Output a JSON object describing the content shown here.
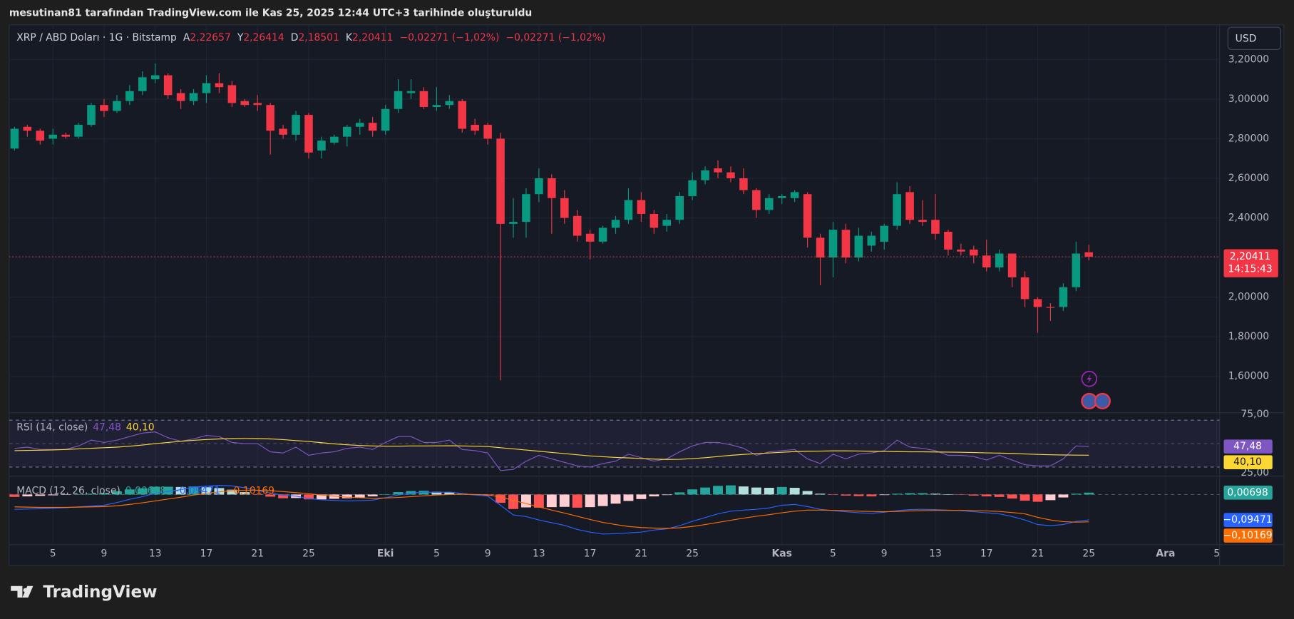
{
  "header": {
    "attribution": "mesutinan81 tarafından TradingView.com ile Kas 25, 2025 12:44 UTC+3 tarihinde oluşturuldu"
  },
  "chart_data": {
    "type": "candlestick",
    "symbol": "XRP / ABD Doları · 1G · Bitstamp",
    "ohlc_labels": [
      "A",
      "Y",
      "D",
      "K"
    ],
    "last_ohlc_labels": [
      "2,22657",
      "2,26414",
      "2,18501",
      "2,20411"
    ],
    "change_labels": [
      "−0,02271 (−1,02%)",
      "−0,02271 (−1,02%)"
    ],
    "currency": "USD",
    "last_label": "2,20411",
    "countdown": "14:15:43",
    "grid": true,
    "up_color": "#089981",
    "down_color": "#f23645",
    "categories": [
      null,
      null,
      null,
      "5",
      null,
      null,
      null,
      "9",
      null,
      null,
      null,
      "13",
      null,
      null,
      null,
      "17",
      null,
      null,
      null,
      "21",
      null,
      null,
      null,
      "25",
      null,
      null,
      null,
      null,
      null,
      "Eki",
      null,
      null,
      null,
      "5",
      null,
      null,
      null,
      "9",
      null,
      null,
      null,
      "13",
      null,
      null,
      null,
      "17",
      null,
      null,
      null,
      "21",
      null,
      null,
      null,
      "25",
      null,
      null,
      null,
      null,
      null,
      null,
      "Kas",
      null,
      null,
      null,
      "5",
      null,
      null,
      null,
      "9",
      null,
      null,
      null,
      "13",
      null,
      null,
      null,
      "17",
      null,
      null,
      null,
      "21",
      null,
      null,
      null,
      "25",
      null,
      null,
      null,
      null,
      null,
      "Ara",
      null,
      null,
      null,
      "5"
    ],
    "open": [
      2.75,
      2.86,
      2.84,
      2.8,
      2.82,
      2.81,
      2.87,
      2.97,
      2.94,
      2.99,
      3.04,
      3.1,
      3.12,
      3.03,
      2.99,
      3.03,
      3.08,
      3.07,
      2.99,
      2.98,
      2.97,
      2.85,
      2.82,
      2.92,
      2.74,
      2.78,
      2.81,
      2.86,
      2.88,
      2.84,
      2.95,
      3.03,
      3.04,
      2.96,
      2.97,
      2.99,
      2.87,
      2.87,
      2.8,
      2.37,
      2.38,
      2.52,
      2.6,
      2.5,
      2.41,
      2.32,
      2.28,
      2.35,
      2.39,
      2.49,
      2.42,
      2.36,
      2.39,
      2.51,
      2.59,
      2.65,
      2.63,
      2.6,
      2.54,
      2.44,
      2.5,
      2.5,
      2.52,
      2.3,
      2.2,
      2.34,
      2.2,
      2.26,
      2.28,
      2.36,
      2.53,
      2.39,
      2.39,
      2.33,
      2.24,
      2.24,
      2.21,
      2.15,
      2.22,
      2.1,
      1.99,
      1.95,
      1.95,
      2.05,
      2.22657,
      null,
      null,
      null,
      null,
      null,
      null,
      null,
      null,
      null,
      null
    ],
    "high": [
      2.86,
      2.87,
      2.85,
      2.85,
      2.83,
      2.88,
      2.98,
      3.0,
      3.02,
      3.07,
      3.14,
      3.18,
      3.13,
      3.05,
      3.05,
      3.12,
      3.13,
      3.09,
      3.0,
      3.02,
      2.98,
      2.87,
      2.94,
      2.93,
      2.81,
      2.82,
      2.87,
      2.9,
      2.91,
      2.97,
      3.1,
      3.1,
      3.06,
      3.06,
      3.02,
      3.0,
      2.9,
      2.88,
      2.83,
      2.5,
      2.55,
      2.65,
      2.62,
      2.54,
      2.44,
      2.34,
      2.36,
      2.41,
      2.55,
      2.53,
      2.44,
      2.42,
      2.53,
      2.63,
      2.66,
      2.69,
      2.66,
      2.65,
      2.55,
      2.52,
      2.52,
      2.54,
      2.53,
      2.32,
      2.38,
      2.37,
      2.35,
      2.33,
      2.37,
      2.58,
      2.56,
      2.49,
      2.52,
      2.34,
      2.27,
      2.26,
      2.29,
      2.24,
      2.22,
      2.13,
      2.0,
      1.97,
      2.07,
      2.28,
      2.26414,
      null,
      null,
      null,
      null,
      null,
      null,
      null,
      null,
      null,
      null
    ],
    "low": [
      2.74,
      2.81,
      2.77,
      2.77,
      2.8,
      2.8,
      2.86,
      2.91,
      2.93,
      2.97,
      3.02,
      3.08,
      3.0,
      2.95,
      2.97,
      2.98,
      3.03,
      2.96,
      2.96,
      2.94,
      2.72,
      2.8,
      2.79,
      2.7,
      2.7,
      2.77,
      2.76,
      2.82,
      2.81,
      2.82,
      2.93,
      3.0,
      2.95,
      2.94,
      2.95,
      2.83,
      2.82,
      2.77,
      1.58,
      2.3,
      2.3,
      2.48,
      2.32,
      2.37,
      2.28,
      2.19,
      2.27,
      2.32,
      2.37,
      2.38,
      2.32,
      2.33,
      2.37,
      2.49,
      2.57,
      2.6,
      2.58,
      2.52,
      2.4,
      2.42,
      2.47,
      2.48,
      2.25,
      2.06,
      2.1,
      2.17,
      2.18,
      2.23,
      2.24,
      2.34,
      2.37,
      2.36,
      2.29,
      2.21,
      2.21,
      2.17,
      2.13,
      2.13,
      2.05,
      1.95,
      1.82,
      1.88,
      1.93,
      2.03,
      2.18501,
      null,
      null,
      null,
      null,
      null,
      null,
      null,
      null,
      null,
      null
    ],
    "close": [
      2.85,
      2.84,
      2.79,
      2.82,
      2.81,
      2.87,
      2.97,
      2.94,
      2.99,
      3.04,
      3.11,
      3.12,
      3.02,
      2.99,
      3.03,
      3.08,
      3.06,
      2.98,
      2.97,
      2.97,
      2.84,
      2.82,
      2.92,
      2.73,
      2.79,
      2.81,
      2.86,
      2.88,
      2.84,
      2.95,
      3.04,
      3.04,
      2.96,
      2.97,
      2.99,
      2.85,
      2.84,
      2.8,
      2.37,
      2.38,
      2.52,
      2.6,
      2.5,
      2.4,
      2.31,
      2.28,
      2.35,
      2.39,
      2.49,
      2.42,
      2.35,
      2.39,
      2.51,
      2.59,
      2.64,
      2.63,
      2.6,
      2.54,
      2.44,
      2.5,
      2.51,
      2.53,
      2.3,
      2.2,
      2.34,
      2.2,
      2.31,
      2.31,
      2.36,
      2.52,
      2.39,
      2.38,
      2.32,
      2.24,
      2.23,
      2.21,
      2.15,
      2.22,
      2.1,
      1.99,
      1.95,
      1.949,
      2.05,
      2.22,
      2.20411,
      null,
      null,
      null,
      null,
      null,
      null,
      null,
      null,
      null,
      null
    ],
    "ylim": [
      1.4,
      3.4
    ],
    "yticks": [
      {
        "value": 1.6,
        "label": "1,60000"
      },
      {
        "value": 1.8,
        "label": "1,80000"
      },
      {
        "value": 2.0,
        "label": "2,00000"
      },
      {
        "value": 2.2,
        "label": "2,20000"
      },
      {
        "value": 2.4,
        "label": "2,40000"
      },
      {
        "value": 2.6,
        "label": "2,60000"
      },
      {
        "value": 2.8,
        "label": "2,80000"
      },
      {
        "value": 3.0,
        "label": "3,00000"
      },
      {
        "value": 3.2,
        "label": "3,20000"
      }
    ],
    "indicators": [
      {
        "type": "line",
        "title": "RSI (14, close)",
        "ylim": [
          25,
          75
        ],
        "yticks": [
          {
            "value": 75,
            "label": "75,00"
          },
          {
            "value": 25,
            "label": "25,00"
          }
        ],
        "levels": [
          70,
          50,
          30
        ],
        "band_color": "#7e57c2",
        "series": [
          {
            "color": "#7e57c2",
            "last_label": "47,48",
            "values": [
              46,
              47,
              45,
              45,
              45,
              48,
              53,
              51,
              53,
              56,
              59,
              60,
              55,
              52,
              54,
              57,
              56,
              51,
              50,
              50,
              43,
              42,
              47,
              40,
              42,
              43,
              46,
              47,
              45,
              51,
              56,
              56,
              51,
              51,
              53,
              45,
              44,
              42,
              27,
              28,
              35,
              40,
              37,
              34,
              31,
              30,
              33,
              35,
              41,
              38,
              35,
              37,
              43,
              48,
              51,
              51,
              49,
              46,
              40,
              43,
              44,
              45,
              37,
              33,
              41,
              37,
              41,
              42,
              44,
              53,
              47,
              46,
              44,
              40,
              40,
              39,
              36,
              40,
              36,
              32,
              31,
              31,
              37,
              48,
              47.48,
              null,
              null,
              null,
              null,
              null,
              null,
              null,
              null,
              null,
              null
            ]
          },
          {
            "color": "#fdd835",
            "last_label": "40,10",
            "values": [
              44,
              44.2,
              44.4,
              44.6,
              45,
              45.5,
              46,
              46.5,
              47,
              47.8,
              48.8,
              50,
              51,
              52,
              52.8,
              53.5,
              54,
              54.3,
              54.4,
              54.3,
              54,
              53.4,
              52.6,
              51.8,
              50.8,
              49.8,
              49,
              48.4,
              48,
              47.8,
              47.8,
              48,
              48,
              48.1,
              48.2,
              48,
              47.8,
              47.5,
              46.5,
              45.5,
              44.5,
              43.5,
              42.5,
              41.5,
              40.5,
              39.5,
              38.8,
              38.2,
              37.8,
              37.3,
              36.8,
              36.5,
              36.6,
              37.2,
              38,
              39,
              40,
              40.8,
              41.4,
              42,
              42.6,
              43.2,
              43.5,
              43.6,
              43.8,
              43.8,
              43.7,
              43.5,
              43.3,
              43.2,
              43,
              43,
              42.9,
              42.8,
              42.6,
              42.4,
              42.1,
              41.9,
              41.6,
              41.2,
              40.8,
              40.5,
              40.3,
              40.2,
              40.1,
              null,
              null,
              null,
              null,
              null,
              null,
              null,
              null,
              null,
              null
            ]
          }
        ]
      },
      {
        "type": "macd",
        "title": "MACD (12, 26, close)",
        "ylim": [
          -0.19,
          0.065
        ],
        "levels": [
          0
        ],
        "histogram": {
          "last_label": "0,00698",
          "colors": [
            "#26a69a",
            "#b2dfdb",
            "#ff5252",
            "#ffcdd2"
          ],
          "values": [
            -0.009,
            -0.007,
            -0.005,
            -0.003,
            -0.001,
            0.001,
            0.003,
            0.005,
            0.012,
            0.019,
            0.023,
            0.029,
            0.029,
            0.028,
            0.03,
            0.027,
            0.024,
            0.018,
            0.009,
            -0.001,
            -0.008,
            -0.014,
            -0.013,
            -0.018,
            -0.018,
            -0.016,
            -0.014,
            -0.011,
            -0.007,
            0.001,
            0.009,
            0.013,
            0.014,
            0.01,
            0.009,
            0.003,
            -0.002,
            -0.005,
            -0.031,
            -0.054,
            -0.048,
            -0.049,
            -0.047,
            -0.046,
            -0.049,
            -0.047,
            -0.043,
            -0.034,
            -0.024,
            -0.017,
            -0.007,
            -0.002,
            0.008,
            0.019,
            0.026,
            0.032,
            0.034,
            0.03,
            0.026,
            0.025,
            0.028,
            0.025,
            0.013,
            0.003,
            -0.001,
            -0.004,
            -0.006,
            -0.007,
            -0.002,
            0.003,
            0.005,
            0.005,
            0.003,
            0.001,
            -0.001,
            -0.004,
            -0.007,
            -0.009,
            -0.015,
            -0.023,
            -0.027,
            -0.021,
            -0.011,
            0.003,
            0.00698,
            null,
            null,
            null,
            null,
            null,
            null,
            null,
            null,
            null,
            null
          ]
        },
        "series": [
          {
            "color": "#2962ff",
            "last_label": "−0,09471",
            "values": [
              -0.055,
              -0.054,
              -0.053,
              -0.051,
              -0.049,
              -0.046,
              -0.043,
              -0.04,
              -0.03,
              -0.018,
              -0.008,
              0.005,
              0.012,
              0.018,
              0.028,
              0.031,
              0.034,
              0.032,
              0.025,
              0.015,
              0.006,
              -0.003,
              -0.006,
              -0.015,
              -0.02,
              -0.022,
              -0.024,
              -0.023,
              -0.021,
              -0.012,
              -0.002,
              0.005,
              0.009,
              0.008,
              0.009,
              0.004,
              -0.002,
              -0.006,
              -0.04,
              -0.076,
              -0.082,
              -0.095,
              -0.105,
              -0.115,
              -0.13,
              -0.14,
              -0.147,
              -0.146,
              -0.143,
              -0.14,
              -0.132,
              -0.128,
              -0.116,
              -0.1,
              -0.086,
              -0.072,
              -0.062,
              -0.058,
              -0.055,
              -0.05,
              -0.04,
              -0.037,
              -0.045,
              -0.055,
              -0.06,
              -0.064,
              -0.068,
              -0.07,
              -0.066,
              -0.06,
              -0.056,
              -0.055,
              -0.056,
              -0.058,
              -0.06,
              -0.064,
              -0.068,
              -0.072,
              -0.082,
              -0.095,
              -0.112,
              -0.116,
              -0.112,
              -0.1,
              -0.09471,
              null,
              null,
              null,
              null,
              null,
              null,
              null,
              null,
              null,
              null
            ]
          },
          {
            "color": "#ff6d00",
            "last_label": "−0,10169",
            "values": [
              -0.046,
              -0.047,
              -0.048,
              -0.048,
              -0.048,
              -0.047,
              -0.046,
              -0.045,
              -0.042,
              -0.037,
              -0.031,
              -0.024,
              -0.017,
              -0.01,
              -0.002,
              0.004,
              0.01,
              0.014,
              0.016,
              0.016,
              0.014,
              0.011,
              0.007,
              0.003,
              -0.002,
              -0.006,
              -0.01,
              -0.012,
              -0.014,
              -0.013,
              -0.011,
              -0.008,
              -0.005,
              -0.002,
              0.0,
              0.001,
              0.0,
              -0.001,
              -0.009,
              -0.022,
              -0.034,
              -0.046,
              -0.058,
              -0.069,
              -0.081,
              -0.093,
              -0.104,
              -0.112,
              -0.119,
              -0.123,
              -0.125,
              -0.126,
              -0.124,
              -0.119,
              -0.112,
              -0.104,
              -0.096,
              -0.088,
              -0.081,
              -0.075,
              -0.068,
              -0.062,
              -0.058,
              -0.058,
              -0.059,
              -0.06,
              -0.062,
              -0.063,
              -0.064,
              -0.063,
              -0.061,
              -0.06,
              -0.059,
              -0.059,
              -0.059,
              -0.06,
              -0.061,
              -0.063,
              -0.067,
              -0.072,
              -0.085,
              -0.095,
              -0.101,
              -0.103,
              -0.10169,
              null,
              null,
              null,
              null,
              null,
              null,
              null,
              null,
              null,
              null
            ]
          }
        ]
      }
    ]
  },
  "footer": {
    "brand": "TradingView"
  }
}
